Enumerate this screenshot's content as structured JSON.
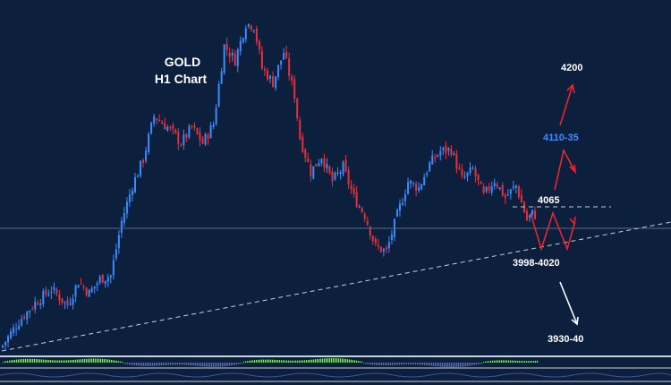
{
  "chart_data": {
    "type": "candlestick",
    "title_line1": "GOLD",
    "title_line2": "H1 Chart",
    "colors": {
      "background": "#0c1f3d",
      "bull": "#3b8cff",
      "bear": "#e8303a",
      "bull_arrow": "#e8262e",
      "bear_arrow": "#ffffff",
      "dashed": "#b8c2d0",
      "highlight_text": "#3d8dff",
      "oscillator_up": "#8fe08a",
      "oscillator_down": "#5b6fa8"
    },
    "levels": {
      "target_high": "4200",
      "target_mid": "4110-35",
      "resistance": "4065",
      "support": "3998-4020",
      "target_low": "3930-40"
    },
    "anchors": [
      [
        0,
        3855
      ],
      [
        6,
        3885
      ],
      [
        12,
        3908
      ],
      [
        18,
        3925
      ],
      [
        24,
        3905
      ],
      [
        28,
        3935
      ],
      [
        32,
        3920
      ],
      [
        36,
        3938
      ],
      [
        40,
        3942
      ],
      [
        44,
        4010
      ],
      [
        48,
        4055
      ],
      [
        52,
        4088
      ],
      [
        56,
        4142
      ],
      [
        62,
        4125
      ],
      [
        66,
        4108
      ],
      [
        70,
        4128
      ],
      [
        74,
        4108
      ],
      [
        78,
        4132
      ],
      [
        82,
        4230
      ],
      [
        86,
        4212
      ],
      [
        90,
        4258
      ],
      [
        93,
        4255
      ],
      [
        96,
        4202
      ],
      [
        100,
        4184
      ],
      [
        104,
        4222
      ],
      [
        108,
        4168
      ],
      [
        110,
        4115
      ],
      [
        114,
        4072
      ],
      [
        118,
        4092
      ],
      [
        122,
        4060
      ],
      [
        126,
        4078
      ],
      [
        130,
        4040
      ],
      [
        134,
        4018
      ],
      [
        138,
        3978
      ],
      [
        142,
        3972
      ],
      [
        146,
        4018
      ],
      [
        150,
        4060
      ],
      [
        154,
        4052
      ],
      [
        158,
        4082
      ],
      [
        162,
        4098
      ],
      [
        166,
        4100
      ],
      [
        170,
        4062
      ],
      [
        174,
        4075
      ],
      [
        178,
        4042
      ],
      [
        182,
        4062
      ],
      [
        186,
        4040
      ],
      [
        190,
        4055
      ],
      [
        194,
        4012
      ],
      [
        196,
        4020
      ],
      [
        197,
        4018
      ]
    ],
    "ylim": [
      3850,
      4265
    ],
    "grid": false,
    "legend": "none"
  }
}
